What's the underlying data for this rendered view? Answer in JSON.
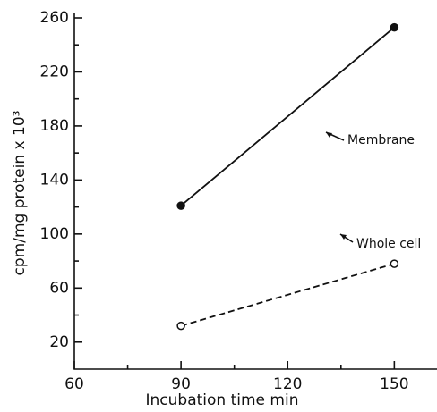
{
  "chart_data": {
    "type": "line",
    "x_label": "Incubation time min",
    "y_label": "cpm/mg protein x 10³",
    "xlim": [
      60,
      162
    ],
    "xticks": [
      60,
      90,
      120,
      150
    ],
    "x_minor_ticks": [
      75,
      105,
      135
    ],
    "ylim": [
      0,
      260
    ],
    "yticks": [
      20,
      60,
      100,
      140,
      180,
      220,
      260
    ],
    "y_minor_ticks": [
      40,
      80,
      120,
      160,
      200,
      240
    ],
    "series": [
      {
        "name": "Membrane",
        "color": "#111111",
        "line_style": "solid",
        "marker": "filled",
        "x": [
          90,
          150
        ],
        "values": [
          121,
          253
        ]
      },
      {
        "name": "Whole cell",
        "color": "#111111",
        "line_style": "dashed",
        "marker": "open",
        "x": [
          90,
          150
        ],
        "values": [
          32,
          78
        ]
      }
    ]
  }
}
